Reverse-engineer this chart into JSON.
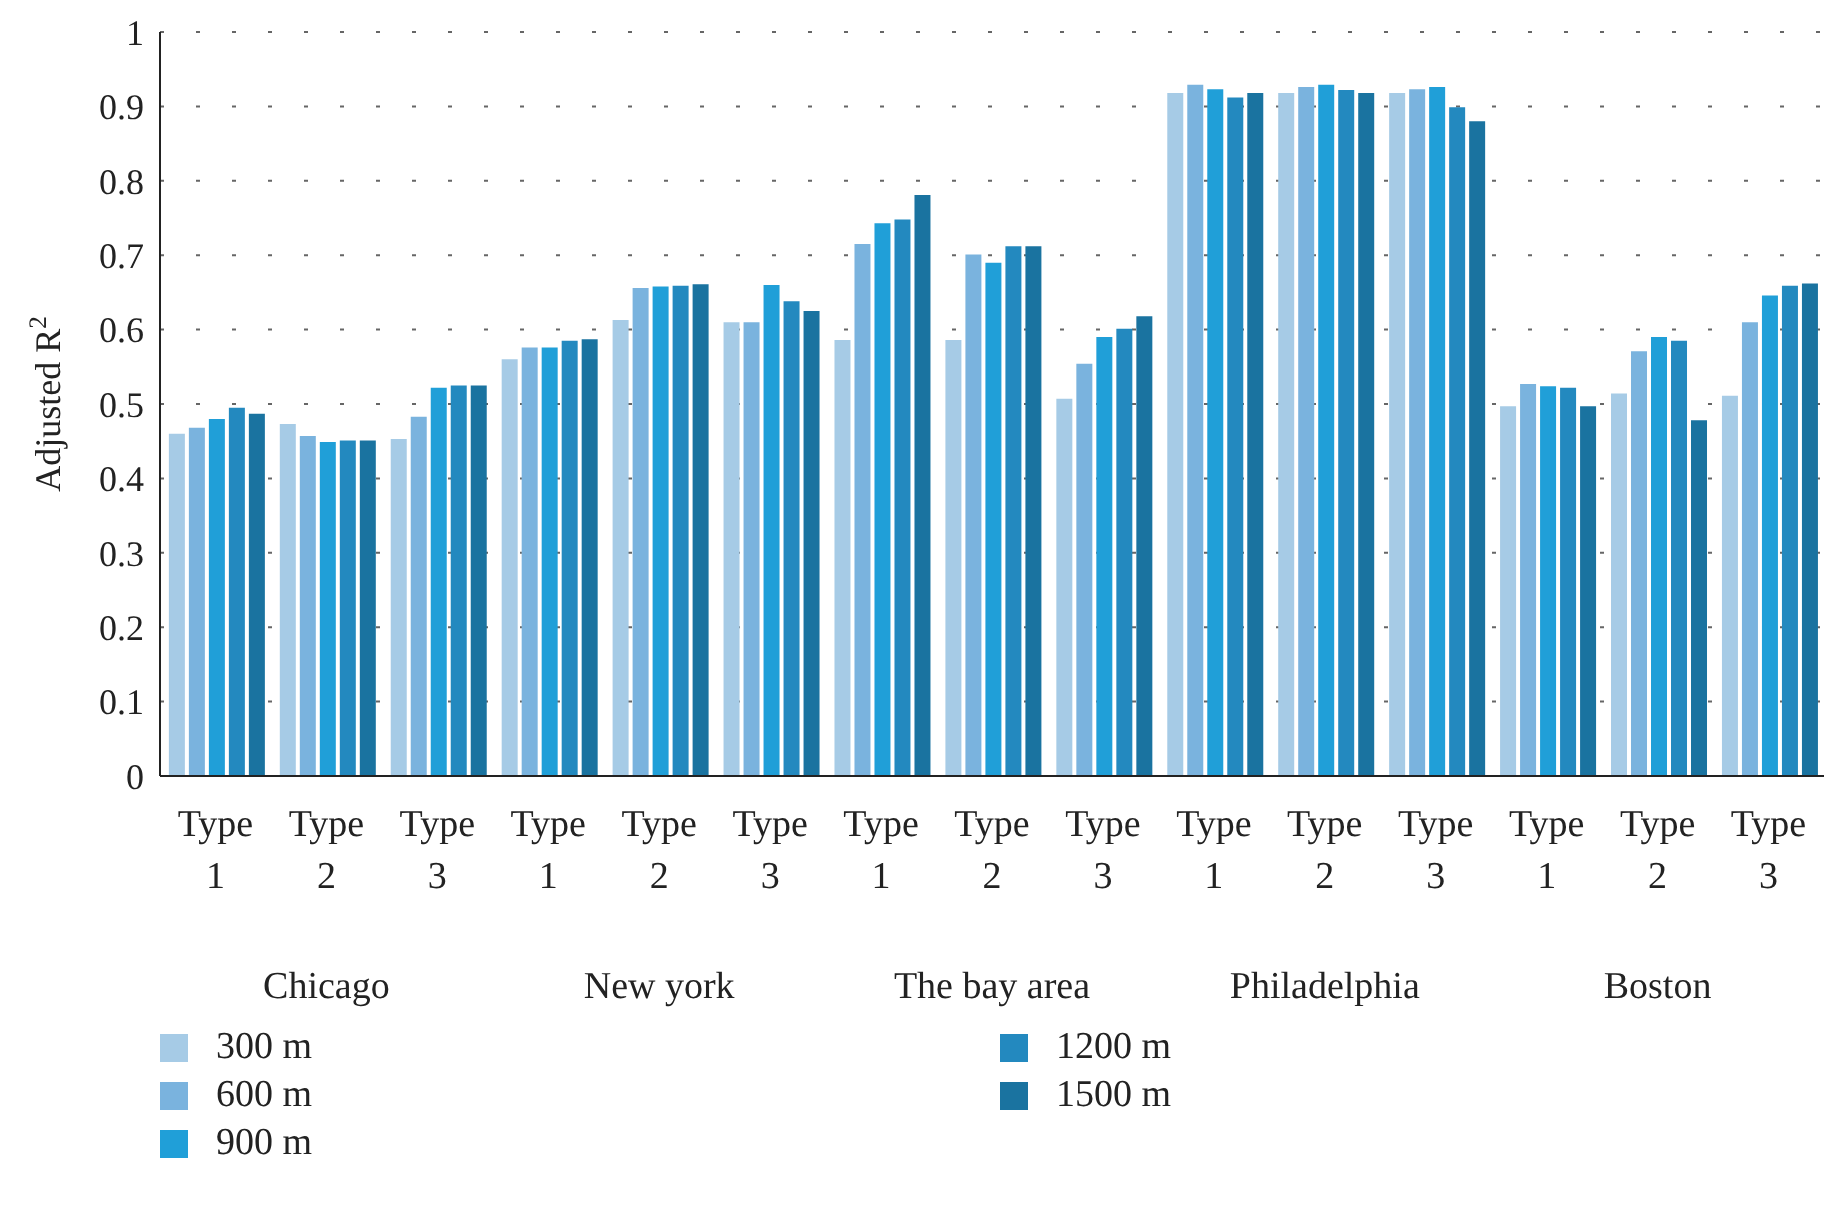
{
  "chart_data": {
    "type": "bar",
    "ylabel": "Adjusted R$^{2}$",
    "categories": [
      "Type 1",
      "Type 2",
      "Type 3",
      "Type 1",
      "Type 2",
      "Type 3",
      "Type 1",
      "Type 2",
      "Type 3",
      "Type 1",
      "Type 2",
      "Type 3",
      "Type 1",
      "Type 2",
      "Type 3"
    ],
    "annotations": [
      "Chicago",
      "New york",
      "The bay area",
      "Philadelphia",
      "Boston"
    ],
    "series": [
      {
        "name": "300 m",
        "color": "#a6cbe6",
        "values": [
          0.46,
          0.473,
          0.453,
          0.56,
          0.613,
          0.61,
          0.586,
          0.586,
          0.507,
          0.918,
          0.918,
          0.918,
          0.497,
          0.514,
          0.511
        ]
      },
      {
        "name": "600 m",
        "color": "#7ab3de",
        "values": [
          0.468,
          0.457,
          0.483,
          0.576,
          0.656,
          0.61,
          0.715,
          0.701,
          0.554,
          0.929,
          0.926,
          0.923,
          0.527,
          0.571,
          0.61
        ]
      },
      {
        "name": "900 m",
        "color": "#209fd8",
        "values": [
          0.48,
          0.449,
          0.522,
          0.576,
          0.658,
          0.66,
          0.743,
          0.69,
          0.59,
          0.923,
          0.929,
          0.926,
          0.524,
          0.59,
          0.646
        ]
      },
      {
        "name": "1200 m",
        "color": "#2389bf",
        "values": [
          0.495,
          0.451,
          0.525,
          0.585,
          0.659,
          0.638,
          0.748,
          0.712,
          0.601,
          0.912,
          0.922,
          0.899,
          0.522,
          0.585,
          0.659
        ]
      },
      {
        "name": "1500 m",
        "color": "#1a73a0",
        "values": [
          0.487,
          0.451,
          0.525,
          0.587,
          0.661,
          0.625,
          0.781,
          0.712,
          0.618,
          0.918,
          0.918,
          0.88,
          0.497,
          0.478,
          0.662
        ]
      }
    ],
    "ylim": [
      0,
      1
    ],
    "yticks": [
      0,
      0.1,
      0.2,
      0.3,
      0.4,
      0.5,
      0.6,
      0.7,
      0.8,
      0.9,
      1
    ],
    "grid": "y",
    "legend": "bottom left"
  }
}
